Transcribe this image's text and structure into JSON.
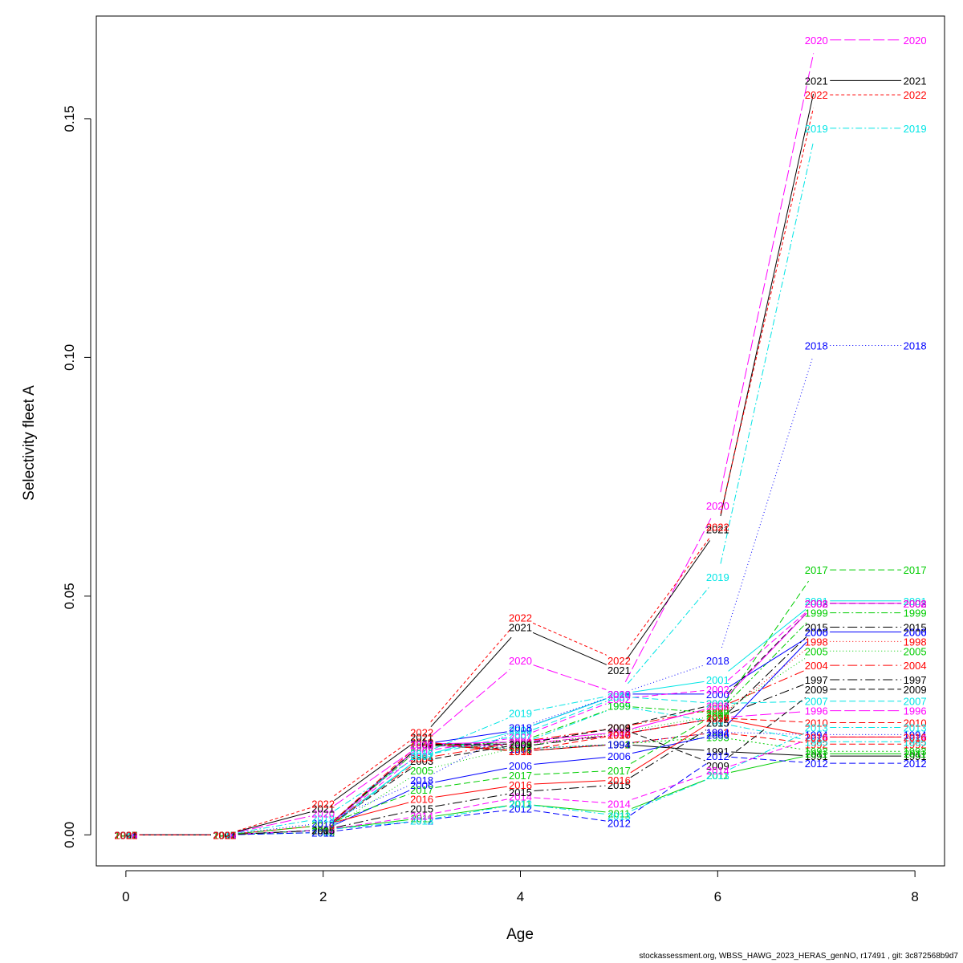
{
  "chart_data": {
    "type": "line",
    "xlabel": "Age",
    "ylabel": "Selectivity fleet A",
    "xlim": [
      -0.3,
      8.3
    ],
    "ylim": [
      -0.0065,
      0.1715
    ],
    "xticks": [
      "0",
      "2",
      "4",
      "6",
      "8"
    ],
    "xtick_values": [
      0,
      2,
      4,
      6,
      8
    ],
    "yticks": [
      "0.00",
      "0.05",
      "0.10",
      "0.15"
    ],
    "ytick_values": [
      0.0,
      0.05,
      0.1,
      0.15
    ],
    "x": [
      0,
      1,
      2,
      3,
      4,
      5,
      6,
      7,
      8
    ],
    "series": [
      {
        "name": "1991",
        "color": "#000000",
        "dash": "solid",
        "values": [
          0,
          0,
          0.001,
          0.019,
          0.0175,
          0.019,
          0.0175,
          0.0165,
          0.0165
        ]
      },
      {
        "name": "1992",
        "color": "#ff0000",
        "dash": "8,4",
        "values": [
          0,
          0,
          0.001,
          0.019,
          0.0175,
          0.019,
          0.0215,
          0.019,
          0.019
        ]
      },
      {
        "name": "1993",
        "color": "#00cd00",
        "dash": "2,3",
        "values": [
          0,
          0,
          0.001,
          0.019,
          0.018,
          0.019,
          0.0205,
          0.0175,
          0.0175
        ]
      },
      {
        "name": "1994",
        "color": "#0000ff",
        "dash": "1,3",
        "values": [
          0,
          0,
          0.001,
          0.019,
          0.018,
          0.019,
          0.0215,
          0.021,
          0.021
        ]
      },
      {
        "name": "1995",
        "color": "#00e5e5",
        "dash": "8,3,2,3",
        "values": [
          0,
          0,
          0.001,
          0.019,
          0.019,
          0.027,
          0.0235,
          0.0195,
          0.0195
        ]
      },
      {
        "name": "1996",
        "color": "#ff00ff",
        "dash": "14,4",
        "values": [
          0,
          0,
          0.001,
          0.0185,
          0.019,
          0.021,
          0.0245,
          0.026,
          0.026
        ]
      },
      {
        "name": "1997",
        "color": "#000000",
        "dash": "12,4,2,4",
        "values": [
          0,
          0,
          0.001,
          0.019,
          0.0185,
          0.021,
          0.0245,
          0.0325,
          0.0325
        ]
      },
      {
        "name": "1998",
        "color": "#ff0000",
        "dash": "1,3",
        "values": [
          0,
          0,
          0.001,
          0.019,
          0.019,
          0.021,
          0.0245,
          0.0405,
          0.0405
        ]
      },
      {
        "name": "1999",
        "color": "#00cd00",
        "dash": "8,3,2,3",
        "values": [
          0,
          0,
          0.001,
          0.0185,
          0.0195,
          0.027,
          0.0255,
          0.0465,
          0.0465
        ]
      },
      {
        "name": "2000",
        "color": "#0000ff",
        "dash": "solid",
        "values": [
          0,
          0,
          0.001,
          0.019,
          0.022,
          0.0295,
          0.0295,
          0.0425,
          0.0425
        ]
      },
      {
        "name": "2001",
        "color": "#00e5e5",
        "dash": "solid",
        "values": [
          0,
          0,
          0.001,
          0.0165,
          0.022,
          0.0295,
          0.0325,
          0.049,
          0.049
        ]
      },
      {
        "name": "2002",
        "color": "#ff00ff",
        "dash": "8,4",
        "values": [
          0,
          0,
          0.001,
          0.0175,
          0.0205,
          0.0285,
          0.0305,
          0.0485,
          0.0485
        ]
      },
      {
        "name": "2003",
        "color": "#000000",
        "dash": "8,4",
        "values": [
          0,
          0,
          0.001,
          0.0155,
          0.019,
          0.0225,
          0.0275,
          0.0485,
          0.0485
        ]
      },
      {
        "name": "2004",
        "color": "#ff0000",
        "dash": "12,4,2,4",
        "values": [
          0,
          0,
          0.001,
          0.016,
          0.0195,
          0.0225,
          0.0265,
          0.0355,
          0.0355
        ]
      },
      {
        "name": "2005",
        "color": "#00cd00",
        "dash": "1,3",
        "values": [
          0,
          0,
          0.0005,
          0.0135,
          0.0185,
          0.0215,
          0.025,
          0.0385,
          0.0385
        ]
      },
      {
        "name": "2006",
        "color": "#0000ff",
        "dash": "solid",
        "values": [
          0,
          0,
          0.001,
          0.0105,
          0.0145,
          0.0165,
          0.021,
          0.0425,
          0.0425
        ]
      },
      {
        "name": "2007",
        "color": "#00e5e5",
        "dash": "8,4",
        "values": [
          0,
          0,
          0.0005,
          0.0165,
          0.021,
          0.029,
          0.0275,
          0.028,
          0.028
        ]
      },
      {
        "name": "2008",
        "color": "#ff00ff",
        "dash": "solid",
        "values": [
          0,
          0,
          0.001,
          0.019,
          0.0195,
          0.0215,
          0.027,
          0.0485,
          0.0485
        ]
      },
      {
        "name": "2009",
        "color": "#000000",
        "dash": "8,4",
        "values": [
          0,
          0,
          0.001,
          0.019,
          0.019,
          0.0225,
          0.0145,
          0.0305,
          0.0305
        ]
      },
      {
        "name": "2010",
        "color": "#ff0000",
        "dash": "8,4",
        "values": [
          0,
          0,
          0.001,
          0.0195,
          0.0175,
          0.021,
          0.0245,
          0.0235,
          0.0235
        ]
      },
      {
        "name": "2011",
        "color": "#00cd00",
        "dash": "solid",
        "values": [
          0,
          0,
          0.001,
          0.0035,
          0.0065,
          0.0045,
          0.0125,
          0.017,
          0.017
        ]
      },
      {
        "name": "2012",
        "color": "#0000ff",
        "dash": "8,4",
        "values": [
          0,
          0,
          0.0005,
          0.003,
          0.0055,
          0.0025,
          0.0165,
          0.015,
          0.015
        ]
      },
      {
        "name": "2013",
        "color": "#00e5e5",
        "dash": "8,3,2,3",
        "values": [
          0,
          0,
          0.001,
          0.003,
          0.0065,
          0.004,
          0.0125,
          0.0225,
          0.0225
        ]
      },
      {
        "name": "2014",
        "color": "#ff00ff",
        "dash": "8,4",
        "values": [
          0,
          0,
          0.001,
          0.004,
          0.008,
          0.0065,
          0.0135,
          0.0205,
          0.0205
        ]
      },
      {
        "name": "2015",
        "color": "#000000",
        "dash": "12,4,2,4",
        "values": [
          0,
          0,
          0.001,
          0.0055,
          0.009,
          0.0105,
          0.0235,
          0.0435,
          0.0435
        ]
      },
      {
        "name": "2016",
        "color": "#ff0000",
        "dash": "solid",
        "values": [
          0,
          0,
          0.002,
          0.0075,
          0.0105,
          0.0115,
          0.0245,
          0.0205,
          0.0205
        ]
      },
      {
        "name": "2017",
        "color": "#00cd00",
        "dash": "8,4",
        "values": [
          0,
          0,
          0.002,
          0.0095,
          0.0125,
          0.0135,
          0.0255,
          0.0555,
          0.0555
        ]
      },
      {
        "name": "2018",
        "color": "#0000ff",
        "dash": "1,3",
        "values": [
          0,
          0,
          0.0025,
          0.0115,
          0.0225,
          0.0295,
          0.0365,
          0.1025,
          0.1025
        ]
      },
      {
        "name": "2019",
        "color": "#00e5e5",
        "dash": "8,3,2,3",
        "values": [
          0,
          0,
          0.0035,
          0.017,
          0.0255,
          0.0295,
          0.054,
          0.148,
          0.148
        ]
      },
      {
        "name": "2020",
        "color": "#ff00ff",
        "dash": "14,4",
        "values": [
          0,
          0,
          0.0045,
          0.019,
          0.0365,
          0.0295,
          0.069,
          0.1665,
          0.1665
        ]
      },
      {
        "name": "2021",
        "color": "#000000",
        "dash": "solid",
        "values": [
          0,
          0,
          0.0055,
          0.0205,
          0.0435,
          0.0345,
          0.064,
          0.158,
          0.158
        ]
      },
      {
        "name": "2022",
        "color": "#ff0000",
        "dash": "4,3",
        "values": [
          0,
          0,
          0.0065,
          0.0215,
          0.0455,
          0.0365,
          0.0645,
          0.155,
          0.155
        ]
      }
    ]
  },
  "footer": {
    "text": "stockassessment.org, WBSS_HAWG_2023_HERAS_genNO, r17491 , git: 3c872568b9d7"
  }
}
